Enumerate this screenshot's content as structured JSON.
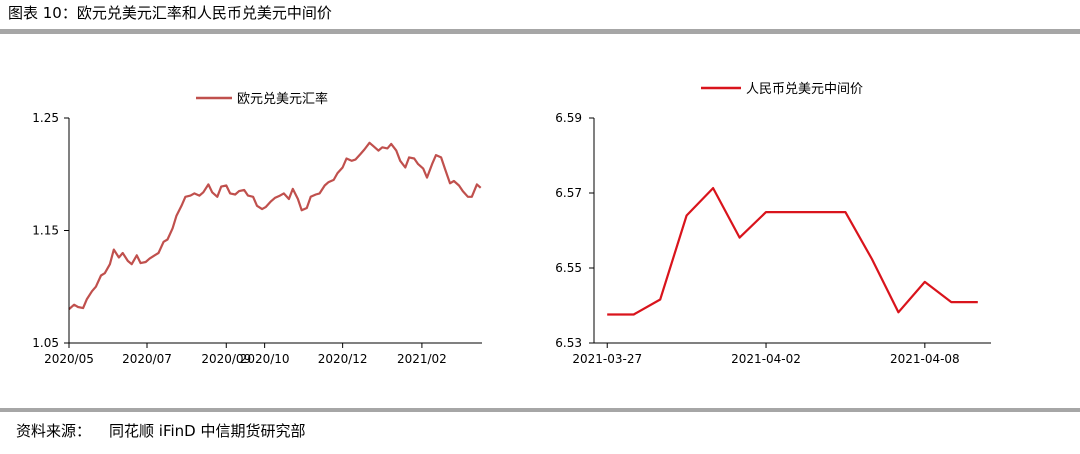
{
  "figure_title": "图表 10：欧元兑美元汇率和人民币兑美元中间价",
  "source": {
    "label": "资料来源：",
    "text": "同花顺 iFinD 中信期货研究部"
  },
  "colors": {
    "eur_line": "#c0504d",
    "cny_line": "#d9141c",
    "rule": "#a6a6a6",
    "axis": "#000000"
  },
  "chart_data": [
    {
      "type": "line",
      "title": "",
      "legend": "top-center",
      "grid": false,
      "xlabel": "",
      "ylabel": "",
      "ylim": [
        1.05,
        1.25
      ],
      "y_ticks": [
        "1.25",
        "1.15",
        "1.05"
      ],
      "y_tick_values": [
        1.25,
        1.15,
        1.05
      ],
      "x_tick_labels": [
        "2020/05",
        "2020/07",
        "2020/09",
        "2020/10",
        "2020/12",
        "2021/02"
      ],
      "x_tick_dates": [
        "2020-05-01",
        "2020-07-01",
        "2020-09-01",
        "2020-10-01",
        "2020-12-01",
        "2021-02-01"
      ],
      "xlim": [
        "2020-05-01",
        "2021-03-20"
      ],
      "series": [
        {
          "name": "欧元兑美元汇率",
          "color": "#c0504d",
          "x": [
            "2020-05-01",
            "2020-05-05",
            "2020-05-08",
            "2020-05-12",
            "2020-05-15",
            "2020-05-19",
            "2020-05-22",
            "2020-05-26",
            "2020-05-29",
            "2020-06-02",
            "2020-06-05",
            "2020-06-09",
            "2020-06-12",
            "2020-06-16",
            "2020-06-19",
            "2020-06-23",
            "2020-06-26",
            "2020-06-30",
            "2020-07-03",
            "2020-07-07",
            "2020-07-10",
            "2020-07-14",
            "2020-07-17",
            "2020-07-21",
            "2020-07-24",
            "2020-07-28",
            "2020-07-31",
            "2020-08-04",
            "2020-08-07",
            "2020-08-11",
            "2020-08-14",
            "2020-08-18",
            "2020-08-21",
            "2020-08-25",
            "2020-08-28",
            "2020-09-01",
            "2020-09-04",
            "2020-09-08",
            "2020-09-11",
            "2020-09-15",
            "2020-09-18",
            "2020-09-22",
            "2020-09-25",
            "2020-09-29",
            "2020-10-02",
            "2020-10-06",
            "2020-10-09",
            "2020-10-13",
            "2020-10-16",
            "2020-10-20",
            "2020-10-23",
            "2020-10-27",
            "2020-10-30",
            "2020-11-03",
            "2020-11-06",
            "2020-11-10",
            "2020-11-13",
            "2020-11-17",
            "2020-11-20",
            "2020-11-24",
            "2020-11-27",
            "2020-12-01",
            "2020-12-04",
            "2020-12-08",
            "2020-12-11",
            "2020-12-15",
            "2020-12-18",
            "2020-12-22",
            "2020-12-25",
            "2020-12-29",
            "2021-01-01",
            "2021-01-05",
            "2021-01-08",
            "2021-01-12",
            "2021-01-15",
            "2021-01-19",
            "2021-01-22",
            "2021-01-26",
            "2021-01-29",
            "2021-02-02",
            "2021-02-05",
            "2021-02-09",
            "2021-02-12",
            "2021-02-16",
            "2021-02-19",
            "2021-02-23",
            "2021-02-26",
            "2021-03-02",
            "2021-03-05",
            "2021-03-09",
            "2021-03-12",
            "2021-03-16",
            "2021-03-19"
          ],
          "values": [
            1.08,
            1.084,
            1.082,
            1.081,
            1.089,
            1.096,
            1.1,
            1.11,
            1.112,
            1.12,
            1.133,
            1.126,
            1.13,
            1.123,
            1.12,
            1.128,
            1.121,
            1.122,
            1.125,
            1.128,
            1.13,
            1.14,
            1.142,
            1.152,
            1.163,
            1.172,
            1.18,
            1.181,
            1.183,
            1.181,
            1.184,
            1.191,
            1.184,
            1.18,
            1.189,
            1.19,
            1.183,
            1.182,
            1.185,
            1.186,
            1.181,
            1.18,
            1.172,
            1.169,
            1.171,
            1.176,
            1.179,
            1.181,
            1.183,
            1.178,
            1.187,
            1.178,
            1.168,
            1.17,
            1.18,
            1.182,
            1.183,
            1.19,
            1.193,
            1.195,
            1.201,
            1.206,
            1.214,
            1.212,
            1.213,
            1.218,
            1.222,
            1.228,
            1.225,
            1.221,
            1.224,
            1.223,
            1.227,
            1.221,
            1.212,
            1.206,
            1.215,
            1.214,
            1.209,
            1.205,
            1.197,
            1.209,
            1.217,
            1.215,
            1.205,
            1.192,
            1.194,
            1.19,
            1.185,
            1.18,
            1.18,
            1.191,
            1.188
          ]
        }
      ]
    },
    {
      "type": "line",
      "title": "",
      "legend": "top-center",
      "grid": false,
      "xlabel": "",
      "ylabel": "",
      "ylim": [
        6.53,
        6.59
      ],
      "y_ticks": [
        "6.59",
        "6.57",
        "6.55",
        "6.53"
      ],
      "y_tick_values": [
        6.59,
        6.57,
        6.55,
        6.53
      ],
      "x_tick_labels": [
        "2021-03-27",
        "2021-04-02",
        "2021-04-08"
      ],
      "x_tick_dates": [
        "2021-03-27",
        "2021-04-02",
        "2021-04-08"
      ],
      "series": [
        {
          "name": "人民币兑美元中间价",
          "color": "#d9141c",
          "x": [
            "2021-03-27",
            "2021-03-28",
            "2021-03-29",
            "2021-03-30",
            "2021-03-31",
            "2021-04-01",
            "2021-04-02",
            "2021-04-03",
            "2021-04-04",
            "2021-04-05",
            "2021-04-06",
            "2021-04-07",
            "2021-04-08",
            "2021-04-09",
            "2021-04-10"
          ],
          "values": [
            6.5376,
            6.5376,
            6.5416,
            6.564,
            6.5713,
            6.5581,
            6.5649,
            6.5649,
            6.5649,
            6.5649,
            6.5524,
            6.5382,
            6.5463,
            6.5409,
            6.5409
          ]
        }
      ]
    }
  ]
}
